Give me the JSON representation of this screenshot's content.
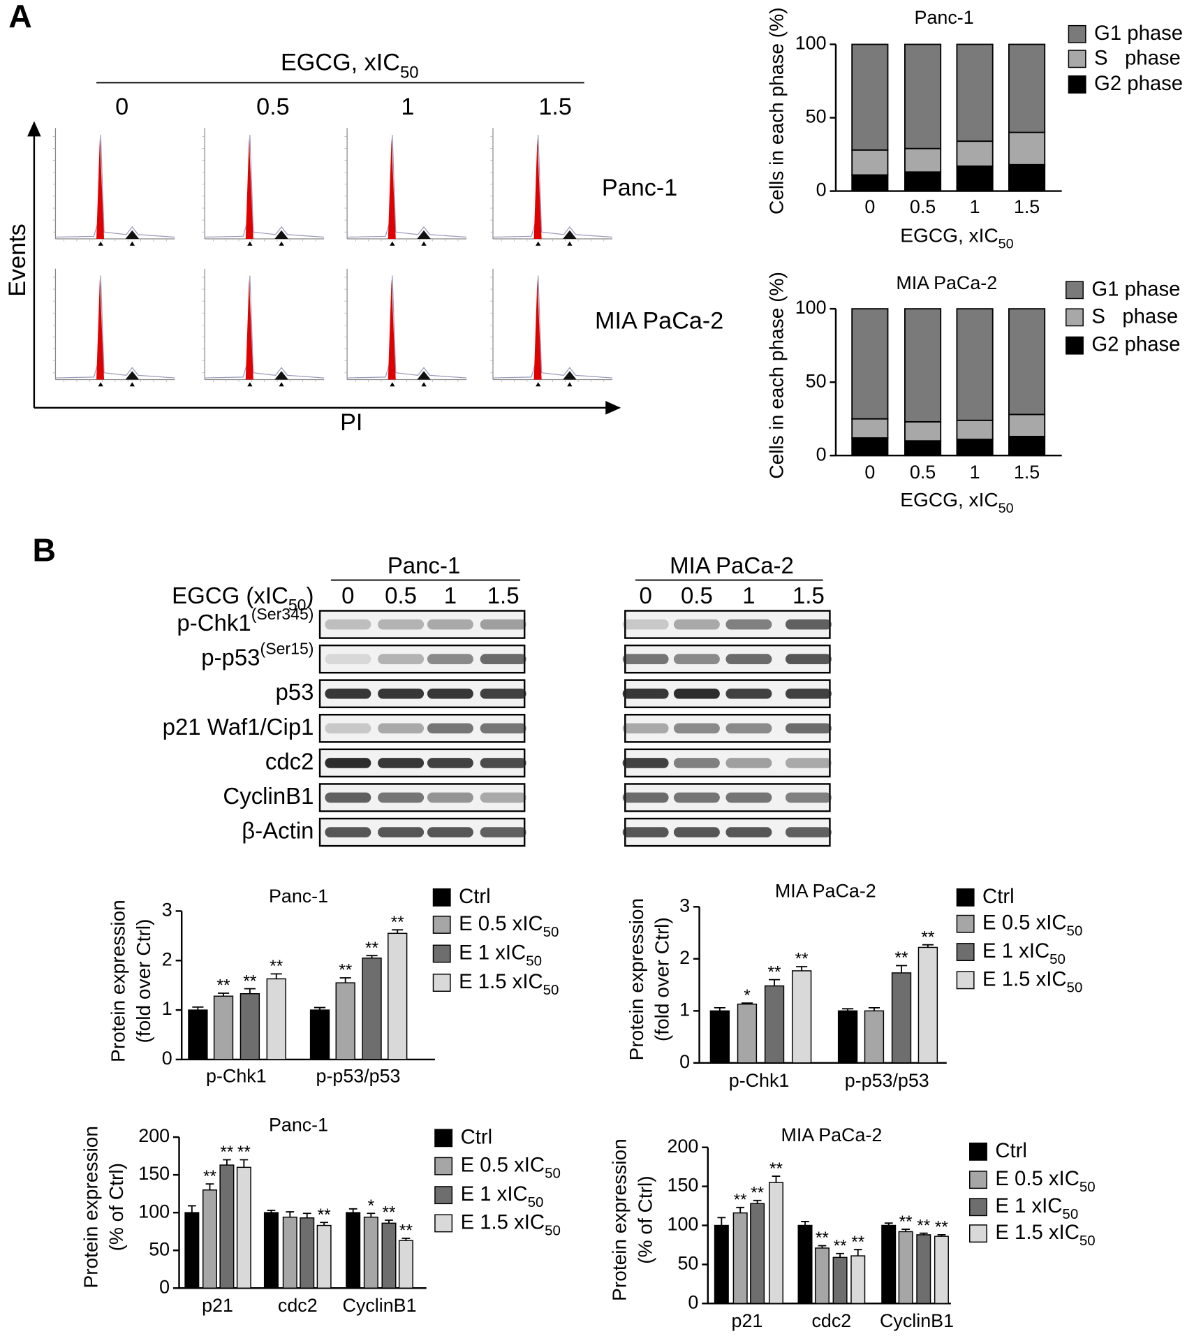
{
  "panel_labels": [
    "A",
    "B"
  ],
  "flow": {
    "treatment": {
      "text": "EGCG, xIC",
      "sub": "50"
    },
    "doses": [
      "0",
      "0.5",
      "1",
      "1.5"
    ],
    "cell_lines": [
      "Panc-1",
      "MIA PaCa-2"
    ],
    "y_axis": "Events",
    "x_axis": "PI"
  },
  "blot": {
    "groups": [
      {
        "name": "Panc-1",
        "lanes": [
          "0",
          "0.5",
          "1",
          "1.5"
        ]
      },
      {
        "name": "MIA PaCa-2",
        "lanes": [
          "0",
          "0.5",
          "1",
          "1.5"
        ]
      }
    ],
    "treatment": {
      "text": "EGCG (xIC",
      "sub": "50",
      "after": ")"
    },
    "rows": [
      {
        "label": "p-Chk1",
        "sup": "(Ser345)"
      },
      {
        "label": "p-p53",
        "sup": "(Ser15)"
      },
      {
        "label": "p53"
      },
      {
        "label": "p21 Waf1/Cip1"
      },
      {
        "label": "cdc2"
      },
      {
        "label": "CyclinB1"
      },
      {
        "label": "β-Actin"
      }
    ]
  },
  "chart_data": [
    {
      "type": "stacked_bar",
      "title": "Panc-1",
      "categories": [
        "0",
        "0.5",
        "1",
        "1.5"
      ],
      "series": [
        {
          "name": "G1 phase",
          "color": "#7a7a7a",
          "values": [
            72,
            71,
            66,
            60
          ]
        },
        {
          "name": "S   phase",
          "color": "#a8a8a8",
          "values": [
            17,
            16,
            17,
            22
          ]
        },
        {
          "name": "G2 phase",
          "color": "#000000",
          "values": [
            11,
            13,
            17,
            18
          ]
        }
      ],
      "ylim": [
        0,
        100
      ],
      "yticks": [
        0,
        50,
        100
      ],
      "ylabel": [
        "Cells in each phase (%)"
      ],
      "xlabel": {
        "text": "EGCG, xIC",
        "sub": "50"
      }
    },
    {
      "type": "stacked_bar",
      "title": "MIA PaCa-2",
      "categories": [
        "0",
        "0.5",
        "1",
        "1.5"
      ],
      "series": [
        {
          "name": "G1 phase",
          "color": "#7a7a7a",
          "values": [
            75,
            77,
            76,
            72
          ]
        },
        {
          "name": "S   phase",
          "color": "#a8a8a8",
          "values": [
            13,
            13,
            13,
            15
          ]
        },
        {
          "name": "G2 phase",
          "color": "#000000",
          "values": [
            12,
            10,
            11,
            13
          ]
        }
      ],
      "ylim": [
        0,
        100
      ],
      "yticks": [
        0,
        50,
        100
      ],
      "ylabel": [
        "Cells in each phase (%)"
      ],
      "xlabel": {
        "text": "EGCG, xIC",
        "sub": "50"
      }
    },
    {
      "type": "bar",
      "title": "Panc-1",
      "categories": [
        "p-Chk1",
        "p-p53/p53"
      ],
      "series": [
        {
          "name": "Ctrl",
          "color": "#000000",
          "values": [
            1.0,
            1.0
          ],
          "errors": [
            0.06,
            0.05
          ],
          "annotations": [
            null,
            null
          ]
        },
        {
          "name": "E 0.5 xIC",
          "name_sub": "50",
          "color": "#a6a6a6",
          "values": [
            1.28,
            1.55
          ],
          "errors": [
            0.06,
            0.1
          ],
          "annotations": [
            "**",
            "**"
          ]
        },
        {
          "name": "E 1 xIC",
          "name_sub": "50",
          "color": "#6e6e6e",
          "values": [
            1.33,
            2.05
          ],
          "errors": [
            0.1,
            0.05
          ],
          "annotations": [
            "**",
            "**"
          ]
        },
        {
          "name": "E 1.5 xIC",
          "name_sub": "50",
          "color": "#d9d9d9",
          "values": [
            1.63,
            2.55
          ],
          "errors": [
            0.1,
            0.07
          ],
          "annotations": [
            "**",
            "**"
          ]
        }
      ],
      "ylim": [
        0,
        3
      ],
      "yticks": [
        0,
        1,
        2,
        3
      ],
      "ylabel": [
        "Protein expression",
        "(fold over Ctrl)"
      ]
    },
    {
      "type": "bar",
      "title": "MIA PaCa-2",
      "categories": [
        "p-Chk1",
        "p-p53/p53"
      ],
      "series": [
        {
          "name": "Ctrl",
          "color": "#000000",
          "values": [
            1.0,
            1.0
          ],
          "errors": [
            0.06,
            0.04
          ],
          "annotations": [
            null,
            null
          ]
        },
        {
          "name": "E 0.5 xIC",
          "name_sub": "50",
          "color": "#a6a6a6",
          "values": [
            1.13,
            1.0
          ],
          "errors": [
            0.02,
            0.06
          ],
          "annotations": [
            "*",
            null
          ]
        },
        {
          "name": "E 1 xIC",
          "name_sub": "50",
          "color": "#6e6e6e",
          "values": [
            1.48,
            1.73
          ],
          "errors": [
            0.12,
            0.14
          ],
          "annotations": [
            "**",
            "**"
          ]
        },
        {
          "name": "E 1.5 xIC",
          "name_sub": "50",
          "color": "#d9d9d9",
          "values": [
            1.77,
            2.22
          ],
          "errors": [
            0.08,
            0.05
          ],
          "annotations": [
            "**",
            "**"
          ]
        }
      ],
      "ylim": [
        0,
        3
      ],
      "yticks": [
        0,
        1,
        2,
        3
      ],
      "ylabel": [
        "Protein expression",
        "(fold over Ctrl)"
      ]
    },
    {
      "type": "bar",
      "title": "Panc-1",
      "categories": [
        "p21",
        "cdc2",
        "CyclinB1"
      ],
      "series": [
        {
          "name": "Ctrl",
          "color": "#000000",
          "values": [
            100,
            100,
            100
          ],
          "errors": [
            9,
            3,
            5
          ],
          "annotations": [
            null,
            null,
            null
          ]
        },
        {
          "name": "E 0.5 xIC",
          "name_sub": "50",
          "color": "#a6a6a6",
          "values": [
            130,
            94,
            94
          ],
          "errors": [
            8,
            7,
            5
          ],
          "annotations": [
            "**",
            null,
            "*"
          ]
        },
        {
          "name": "E 1 xIC",
          "name_sub": "50",
          "color": "#6e6e6e",
          "values": [
            163,
            93,
            86
          ],
          "errors": [
            7,
            6,
            4
          ],
          "annotations": [
            "**",
            null,
            "**"
          ]
        },
        {
          "name": "E 1.5 xIC",
          "name_sub": "50",
          "color": "#d9d9d9",
          "values": [
            160,
            83,
            63
          ],
          "errors": [
            10,
            4,
            3
          ],
          "annotations": [
            "**",
            "**",
            "**"
          ]
        }
      ],
      "ylim": [
        0,
        200
      ],
      "yticks": [
        0,
        50,
        100,
        150,
        200
      ],
      "ylabel": [
        "Protein expression",
        "(% of Ctrl)"
      ]
    },
    {
      "type": "bar",
      "title": "MIA PaCa-2",
      "categories": [
        "p21",
        "cdc2",
        "CyclinB1"
      ],
      "series": [
        {
          "name": "Ctrl",
          "color": "#000000",
          "values": [
            100,
            100,
            100
          ],
          "errors": [
            10,
            5,
            3
          ],
          "annotations": [
            null,
            null,
            null
          ]
        },
        {
          "name": "E 0.5 xIC",
          "name_sub": "50",
          "color": "#a6a6a6",
          "values": [
            116,
            71,
            92
          ],
          "errors": [
            7,
            3,
            3
          ],
          "annotations": [
            "**",
            "**",
            "**"
          ]
        },
        {
          "name": "E 1 xIC",
          "name_sub": "50",
          "color": "#6e6e6e",
          "values": [
            128,
            59,
            88
          ],
          "errors": [
            4,
            5,
            2
          ],
          "annotations": [
            "**",
            "**",
            "**"
          ]
        },
        {
          "name": "E 1.5 xIC",
          "name_sub": "50",
          "color": "#d9d9d9",
          "values": [
            155,
            61,
            86
          ],
          "errors": [
            8,
            8,
            2
          ],
          "annotations": [
            "**",
            "**",
            "**"
          ]
        }
      ],
      "ylim": [
        0,
        200
      ],
      "yticks": [
        0,
        50,
        100,
        150,
        200
      ],
      "ylabel": [
        "Protein expression",
        "(% of Ctrl)"
      ]
    }
  ]
}
